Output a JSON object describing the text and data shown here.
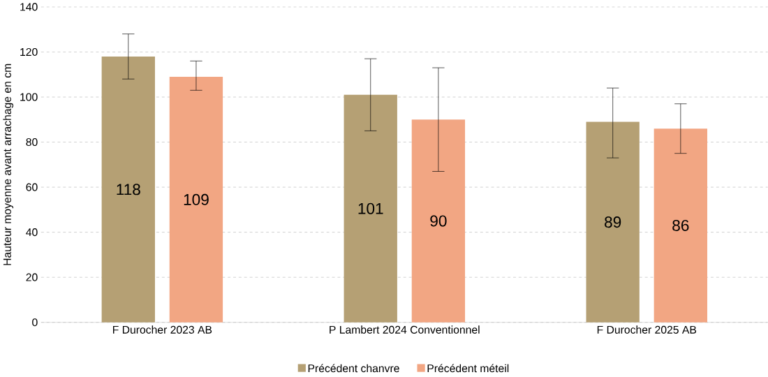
{
  "chart_data": {
    "type": "bar",
    "ylabel": "Hauteur moyenne avant arrachage en cm",
    "categories": [
      "F Durocher 2023 AB",
      "P Lambert 2024 Conventionnel",
      "F Durocher  2025 AB"
    ],
    "series": [
      {
        "name": "Précédent chanvre",
        "color": "#b5a074",
        "values": [
          118,
          101,
          89
        ],
        "errors": [
          [
            108,
            128
          ],
          [
            85,
            117
          ],
          [
            73,
            104
          ]
        ]
      },
      {
        "name": "Précédent méteil",
        "color": "#f2a683",
        "values": [
          109,
          90,
          86
        ],
        "errors": [
          [
            103,
            116
          ],
          [
            67,
            113
          ],
          [
            75,
            97
          ]
        ]
      }
    ],
    "ylim": [
      0,
      140
    ],
    "yticks": [
      0,
      20,
      40,
      60,
      80,
      100,
      120,
      140
    ],
    "grid": "y",
    "legend": "bottom",
    "data_labels": true
  }
}
